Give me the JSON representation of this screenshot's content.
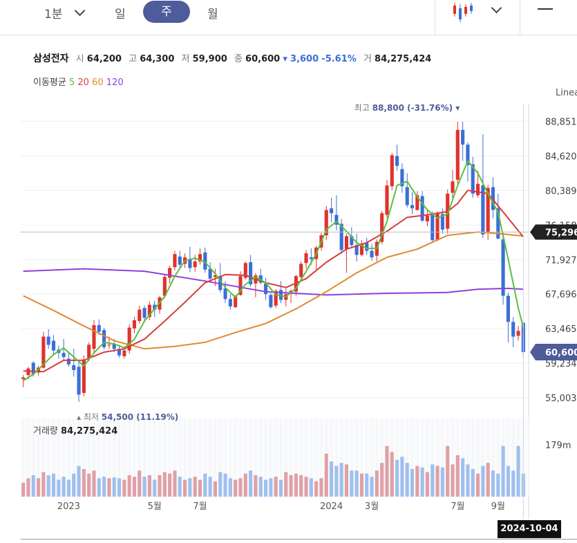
{
  "tabs": [
    {
      "label": "1분",
      "active": false
    },
    {
      "label": "일",
      "active": false
    },
    {
      "label": "주",
      "active": true
    },
    {
      "label": "월",
      "active": false
    }
  ],
  "icons": {
    "chart_type": "candlestick-icon",
    "dropdown": "chevron-down-icon",
    "menu": "menu-icon"
  },
  "quote": {
    "name": "삼성전자",
    "open_label": "시",
    "open": "64,200",
    "high_label": "고",
    "high": "64,300",
    "low_label": "저",
    "low": "59,900",
    "close_label": "종",
    "close": "60,600",
    "change": "3,600",
    "change_pct": "-5.61%",
    "volume_label": "거",
    "volume": "84,275,424"
  },
  "ma_legend": {
    "label": "이동평균",
    "ma5": "5",
    "ma20": "20",
    "ma60": "60",
    "ma120": "120"
  },
  "scale_label": "Linea",
  "price_high_note": {
    "label": "최고",
    "value": "88,800",
    "pct": "(-31.76%)"
  },
  "price_low_note": {
    "label": "최저",
    "value": "54,500",
    "pct": "(11.19%)"
  },
  "volume_panel": {
    "label": "거래량",
    "value": "84,275,424",
    "axis_max": "179m"
  },
  "cursor_date": "2024-10-04",
  "colors": {
    "up": "#e0322d",
    "down": "#3a6fd8",
    "ma5": "#5abf3c",
    "ma20": "#d63b3b",
    "ma60": "#e08a2e",
    "ma120": "#8f3fe0",
    "vol_up": "#e0a0a5",
    "vol_down": "#9fc0ee"
  },
  "chart_data": {
    "type": "candlestick",
    "y_ticks": [
      "88,851",
      "84,620",
      "80,389",
      "76,158",
      "71,927",
      "67,696",
      "63,465",
      "59,234",
      "55,003"
    ],
    "y_range": [
      52900,
      91000
    ],
    "x_ticks": [
      {
        "label": "2023",
        "index": 9
      },
      {
        "label": "5월",
        "index": 26
      },
      {
        "label": "7월",
        "index": 35
      },
      {
        "label": "2024",
        "index": 61
      },
      {
        "label": "3월",
        "index": 69
      },
      {
        "label": "7월",
        "index": 86
      },
      {
        "label": "9월",
        "index": 94
      }
    ],
    "price_tags": {
      "crosshair": "75,296",
      "last": "60,600"
    },
    "crosshair_value": 75296,
    "last_value": 60600,
    "ohlc": [
      [
        57300,
        57800,
        56300,
        57500
      ],
      [
        57800,
        58800,
        57300,
        58600
      ],
      [
        59300,
        59500,
        57600,
        57900
      ],
      [
        58100,
        58900,
        57700,
        58700
      ],
      [
        58700,
        63100,
        58600,
        62500
      ],
      [
        62500,
        63400,
        61000,
        61500
      ],
      [
        62000,
        62700,
        60300,
        60800
      ],
      [
        60900,
        61400,
        59800,
        60500
      ],
      [
        60500,
        62200,
        59700,
        60000
      ],
      [
        59800,
        60600,
        58800,
        59100
      ],
      [
        59000,
        61000,
        57600,
        58400
      ],
      [
        58800,
        59500,
        54500,
        55400
      ],
      [
        55600,
        60200,
        55200,
        59700
      ],
      [
        59900,
        61800,
        59500,
        61500
      ],
      [
        61000,
        64500,
        60600,
        63900
      ],
      [
        63900,
        64600,
        62700,
        63100
      ],
      [
        63300,
        63600,
        60900,
        61200
      ],
      [
        61500,
        62500,
        61000,
        61500
      ],
      [
        61600,
        62200,
        60600,
        61000
      ],
      [
        61000,
        61500,
        59900,
        60200
      ],
      [
        60100,
        61300,
        59800,
        60800
      ],
      [
        60800,
        64000,
        60400,
        63600
      ],
      [
        63500,
        64900,
        62900,
        64500
      ],
      [
        64400,
        66300,
        64100,
        65800
      ],
      [
        66000,
        66300,
        64300,
        64800
      ],
      [
        64900,
        66800,
        64500,
        66400
      ],
      [
        66400,
        66900,
        64900,
        65800
      ],
      [
        65800,
        67500,
        65300,
        67300
      ],
      [
        67500,
        70100,
        67200,
        69800
      ],
      [
        69700,
        71200,
        69000,
        70900
      ],
      [
        71000,
        73000,
        70600,
        72600
      ],
      [
        72300,
        73000,
        70800,
        71300
      ],
      [
        71400,
        72700,
        70900,
        72200
      ],
      [
        72000,
        73500,
        70400,
        70900
      ],
      [
        71000,
        72500,
        70400,
        71700
      ],
      [
        71700,
        73300,
        71300,
        72600
      ],
      [
        72800,
        73400,
        70300,
        70700
      ],
      [
        70800,
        71600,
        69200,
        69600
      ],
      [
        69800,
        70800,
        68700,
        70000
      ],
      [
        69900,
        71500,
        67900,
        68200
      ],
      [
        68400,
        69300,
        66600,
        67100
      ],
      [
        67100,
        67700,
        65800,
        66200
      ],
      [
        66100,
        67600,
        66000,
        67500
      ],
      [
        67600,
        70500,
        67500,
        69900
      ],
      [
        69700,
        71700,
        69500,
        71500
      ],
      [
        71600,
        72500,
        68600,
        68900
      ],
      [
        69000,
        70300,
        67300,
        70000
      ],
      [
        70000,
        70800,
        68900,
        69100
      ],
      [
        69000,
        69700,
        67000,
        67700
      ],
      [
        67600,
        67800,
        65900,
        66100
      ],
      [
        66300,
        68300,
        66000,
        68100
      ],
      [
        68200,
        69300,
        66600,
        67000
      ],
      [
        67000,
        68400,
        66200,
        67700
      ],
      [
        67800,
        68300,
        66600,
        68100
      ],
      [
        68000,
        70100,
        67500,
        69900
      ],
      [
        69800,
        71700,
        69500,
        71400
      ],
      [
        71500,
        73100,
        70800,
        72700
      ],
      [
        72200,
        73300,
        71300,
        72000
      ],
      [
        72000,
        73600,
        70700,
        73400
      ],
      [
        73400,
        75200,
        73000,
        74900
      ],
      [
        74900,
        78500,
        74300,
        78000
      ],
      [
        78200,
        79500,
        76500,
        77600
      ],
      [
        77400,
        79800,
        75500,
        76200
      ],
      [
        76300,
        76900,
        72600,
        73100
      ],
      [
        73200,
        75100,
        70300,
        74800
      ],
      [
        74800,
        75900,
        73300,
        73700
      ],
      [
        73700,
        75100,
        71700,
        72500
      ],
      [
        72500,
        74300,
        72300,
        73900
      ],
      [
        74000,
        74600,
        72500,
        73000
      ],
      [
        73000,
        73800,
        71800,
        72200
      ],
      [
        72400,
        74400,
        71700,
        74100
      ],
      [
        74100,
        77900,
        73800,
        77600
      ],
      [
        77400,
        81700,
        77000,
        81000
      ],
      [
        80900,
        85000,
        80400,
        84700
      ],
      [
        84600,
        86000,
        82800,
        83400
      ],
      [
        83000,
        83700,
        80100,
        80900
      ],
      [
        80800,
        82500,
        78300,
        78600
      ],
      [
        78600,
        80200,
        77500,
        78200
      ],
      [
        78000,
        80300,
        77900,
        79800
      ],
      [
        79700,
        80300,
        76500,
        76700
      ],
      [
        76600,
        78000,
        76000,
        77300
      ],
      [
        77400,
        77800,
        74100,
        74300
      ],
      [
        74300,
        77800,
        74200,
        77600
      ],
      [
        77500,
        78200,
        75100,
        75600
      ],
      [
        75700,
        80500,
        75100,
        80000
      ],
      [
        80100,
        82900,
        79100,
        81500
      ],
      [
        81700,
        88800,
        81200,
        87800
      ],
      [
        87800,
        88800,
        84000,
        86000
      ],
      [
        86000,
        86300,
        81500,
        83500
      ],
      [
        83600,
        84500,
        79500,
        80000
      ],
      [
        79800,
        82800,
        79500,
        81200
      ],
      [
        81000,
        87300,
        74600,
        75000
      ],
      [
        75300,
        81100,
        74300,
        80700
      ],
      [
        80800,
        82000,
        77000,
        78000
      ],
      [
        78200,
        80000,
        74400,
        74500
      ],
      [
        74400,
        75200,
        66400,
        67500
      ],
      [
        67500,
        67900,
        61800,
        64300
      ],
      [
        64300,
        64900,
        61200,
        62500
      ],
      [
        62600,
        63800,
        62000,
        63200
      ],
      [
        64200,
        64300,
        59900,
        60600
      ]
    ],
    "volume": [
      [
        18,
        1
      ],
      [
        24,
        1
      ],
      [
        28,
        0
      ],
      [
        24,
        1
      ],
      [
        32,
        1
      ],
      [
        28,
        0
      ],
      [
        30,
        0
      ],
      [
        22,
        0
      ],
      [
        26,
        0
      ],
      [
        22,
        0
      ],
      [
        30,
        0
      ],
      [
        40,
        0
      ],
      [
        36,
        1
      ],
      [
        30,
        1
      ],
      [
        34,
        1
      ],
      [
        24,
        0
      ],
      [
        26,
        0
      ],
      [
        24,
        1
      ],
      [
        25,
        0
      ],
      [
        24,
        0
      ],
      [
        22,
        1
      ],
      [
        28,
        1
      ],
      [
        26,
        1
      ],
      [
        34,
        1
      ],
      [
        26,
        0
      ],
      [
        28,
        1
      ],
      [
        22,
        0
      ],
      [
        28,
        1
      ],
      [
        32,
        1
      ],
      [
        30,
        1
      ],
      [
        34,
        1
      ],
      [
        26,
        0
      ],
      [
        22,
        1
      ],
      [
        24,
        0
      ],
      [
        26,
        1
      ],
      [
        22,
        1
      ],
      [
        30,
        0
      ],
      [
        26,
        0
      ],
      [
        20,
        1
      ],
      [
        32,
        0
      ],
      [
        30,
        0
      ],
      [
        24,
        0
      ],
      [
        22,
        1
      ],
      [
        24,
        1
      ],
      [
        30,
        1
      ],
      [
        34,
        0
      ],
      [
        28,
        1
      ],
      [
        26,
        0
      ],
      [
        22,
        0
      ],
      [
        24,
        0
      ],
      [
        26,
        1
      ],
      [
        22,
        0
      ],
      [
        32,
        1
      ],
      [
        28,
        1
      ],
      [
        30,
        1
      ],
      [
        28,
        1
      ],
      [
        26,
        1
      ],
      [
        24,
        0
      ],
      [
        20,
        1
      ],
      [
        24,
        1
      ],
      [
        56,
        1
      ],
      [
        46,
        0
      ],
      [
        40,
        0
      ],
      [
        44,
        0
      ],
      [
        42,
        1
      ],
      [
        34,
        0
      ],
      [
        34,
        0
      ],
      [
        30,
        1
      ],
      [
        30,
        0
      ],
      [
        26,
        0
      ],
      [
        34,
        1
      ],
      [
        44,
        1
      ],
      [
        66,
        1
      ],
      [
        58,
        1
      ],
      [
        48,
        0
      ],
      [
        52,
        0
      ],
      [
        44,
        0
      ],
      [
        36,
        0
      ],
      [
        40,
        1
      ],
      [
        38,
        0
      ],
      [
        32,
        1
      ],
      [
        42,
        0
      ],
      [
        40,
        1
      ],
      [
        38,
        0
      ],
      [
        66,
        1
      ],
      [
        42,
        1
      ],
      [
        54,
        1
      ],
      [
        50,
        0
      ],
      [
        42,
        0
      ],
      [
        36,
        0
      ],
      [
        30,
        1
      ],
      [
        40,
        0
      ],
      [
        44,
        1
      ],
      [
        34,
        0
      ],
      [
        30,
        0
      ],
      [
        66,
        0
      ],
      [
        40,
        0
      ],
      [
        34,
        0
      ],
      [
        66,
        0
      ],
      [
        30,
        0
      ]
    ],
    "ma5": [
      [
        0,
        57100
      ],
      [
        2,
        57900
      ],
      [
        4,
        59100
      ],
      [
        6,
        60300
      ],
      [
        8,
        61100
      ],
      [
        10,
        60000
      ],
      [
        12,
        58900
      ],
      [
        14,
        60500
      ],
      [
        16,
        61800
      ],
      [
        18,
        61600
      ],
      [
        20,
        61100
      ],
      [
        22,
        62200
      ],
      [
        24,
        64400
      ],
      [
        26,
        65900
      ],
      [
        28,
        67400
      ],
      [
        30,
        69900
      ],
      [
        32,
        71800
      ],
      [
        34,
        72100
      ],
      [
        36,
        71600
      ],
      [
        38,
        70200
      ],
      [
        40,
        68500
      ],
      [
        42,
        67300
      ],
      [
        44,
        68900
      ],
      [
        46,
        69800
      ],
      [
        48,
        69100
      ],
      [
        50,
        67600
      ],
      [
        52,
        67400
      ],
      [
        54,
        68400
      ],
      [
        56,
        70500
      ],
      [
        58,
        72600
      ],
      [
        60,
        75600
      ],
      [
        62,
        76600
      ],
      [
        64,
        75400
      ],
      [
        66,
        74000
      ],
      [
        68,
        73300
      ],
      [
        70,
        73300
      ],
      [
        72,
        76600
      ],
      [
        74,
        81000
      ],
      [
        76,
        81500
      ],
      [
        78,
        79600
      ],
      [
        80,
        78000
      ],
      [
        82,
        77000
      ],
      [
        84,
        77500
      ],
      [
        86,
        81000
      ],
      [
        88,
        84000
      ],
      [
        90,
        82500
      ],
      [
        92,
        80000
      ],
      [
        94,
        77700
      ],
      [
        96,
        72000
      ],
      [
        98,
        66000
      ],
      [
        99,
        63600
      ]
    ],
    "ma20": [
      [
        0,
        58300
      ],
      [
        4,
        58200
      ],
      [
        8,
        59600
      ],
      [
        12,
        59600
      ],
      [
        16,
        60600
      ],
      [
        20,
        61000
      ],
      [
        24,
        62200
      ],
      [
        28,
        64400
      ],
      [
        32,
        66700
      ],
      [
        36,
        69100
      ],
      [
        40,
        70100
      ],
      [
        44,
        70000
      ],
      [
        48,
        69100
      ],
      [
        52,
        68500
      ],
      [
        56,
        69600
      ],
      [
        60,
        71600
      ],
      [
        64,
        73200
      ],
      [
        68,
        74000
      ],
      [
        72,
        75400
      ],
      [
        76,
        77100
      ],
      [
        80,
        77400
      ],
      [
        84,
        77800
      ],
      [
        86,
        78800
      ],
      [
        88,
        80400
      ],
      [
        92,
        80000
      ],
      [
        96,
        77000
      ],
      [
        99,
        74700
      ]
    ],
    "ma60": [
      [
        0,
        67500
      ],
      [
        6,
        65700
      ],
      [
        12,
        63800
      ],
      [
        18,
        62000
      ],
      [
        24,
        61000
      ],
      [
        30,
        61300
      ],
      [
        36,
        61800
      ],
      [
        42,
        63000
      ],
      [
        48,
        64100
      ],
      [
        54,
        65900
      ],
      [
        60,
        68000
      ],
      [
        66,
        70300
      ],
      [
        72,
        72200
      ],
      [
        78,
        73200
      ],
      [
        84,
        74900
      ],
      [
        90,
        75300
      ],
      [
        96,
        75000
      ],
      [
        99,
        74800
      ]
    ],
    "ma120": [
      [
        0,
        70500
      ],
      [
        12,
        70800
      ],
      [
        24,
        70500
      ],
      [
        36,
        69300
      ],
      [
        48,
        68000
      ],
      [
        60,
        67600
      ],
      [
        72,
        67800
      ],
      [
        84,
        67900
      ],
      [
        90,
        68300
      ],
      [
        96,
        68400
      ],
      [
        99,
        68300
      ]
    ]
  }
}
